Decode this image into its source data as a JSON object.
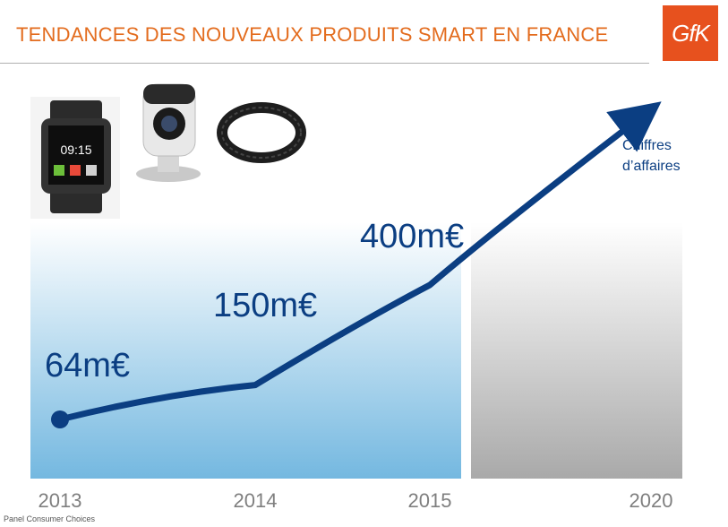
{
  "header": {
    "title": "TENDANCES DES NOUVEAUX PRODUITS SMART EN FRANCE",
    "logo_text": "GfK"
  },
  "colors": {
    "title": "#e36c1e",
    "line": "#0b3e82",
    "logo_bg": "#e7511e"
  },
  "products": [
    {
      "name": "smartwatch-icon",
      "screen_time": "09:15"
    },
    {
      "name": "camera-icon"
    },
    {
      "name": "fitness-band-icon"
    }
  ],
  "source": "Panel Consumer Choices",
  "chart_data": {
    "type": "line",
    "categories": [
      "2013",
      "2014",
      "2015",
      "2020"
    ],
    "series": [
      {
        "values": [
          64,
          150,
          400,
          null
        ]
      }
    ],
    "data_labels": [
      "64m€",
      "150m€",
      "400m€"
    ],
    "annotation": "Chiffres d’affaires",
    "shaded_regions": [
      {
        "from": "2013",
        "to": "2015",
        "color": "blue-gradient"
      },
      {
        "from": "2015",
        "to": "2020",
        "color": "gray-gradient"
      }
    ]
  }
}
